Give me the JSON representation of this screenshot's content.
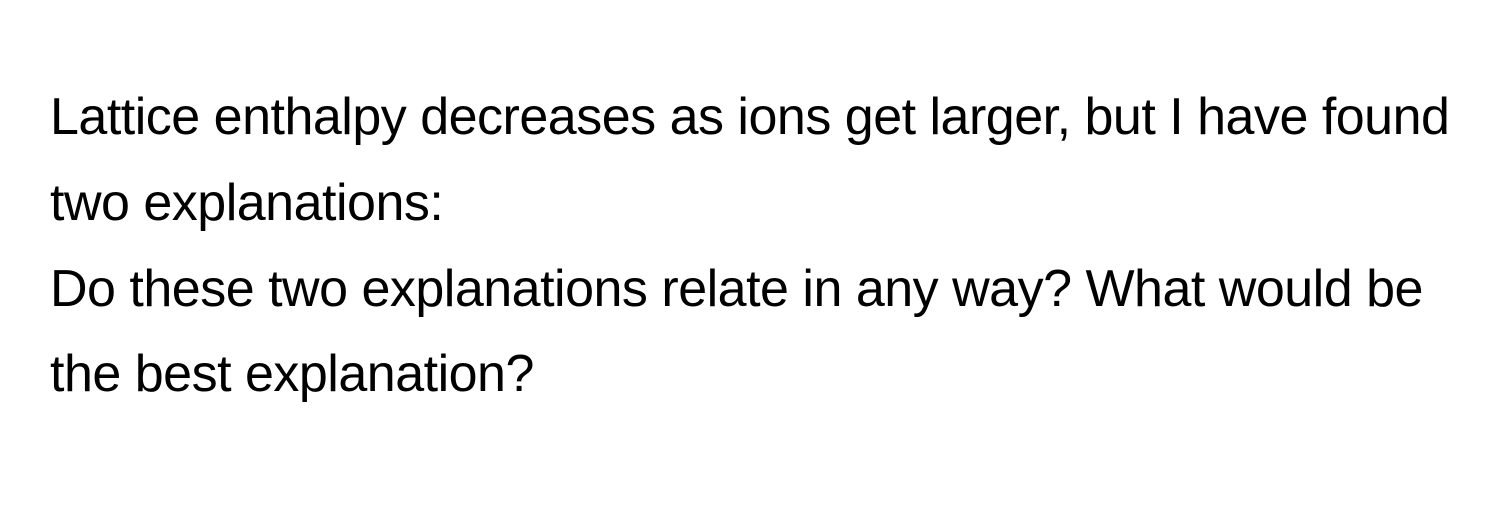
{
  "document": {
    "paragraph1": "Lattice enthalpy decreases as ions get larger, but I have found two explanations:",
    "paragraph2": "Do these two explanations relate in any way? What would be the best explanation?",
    "styling": {
      "background_color": "#ffffff",
      "text_color": "#000000",
      "font_size": 52,
      "line_height": 1.65,
      "font_weight": 400,
      "font_family": "-apple-system, BlinkMacSystemFont, Segoe UI, Helvetica, Arial, sans-serif"
    }
  }
}
